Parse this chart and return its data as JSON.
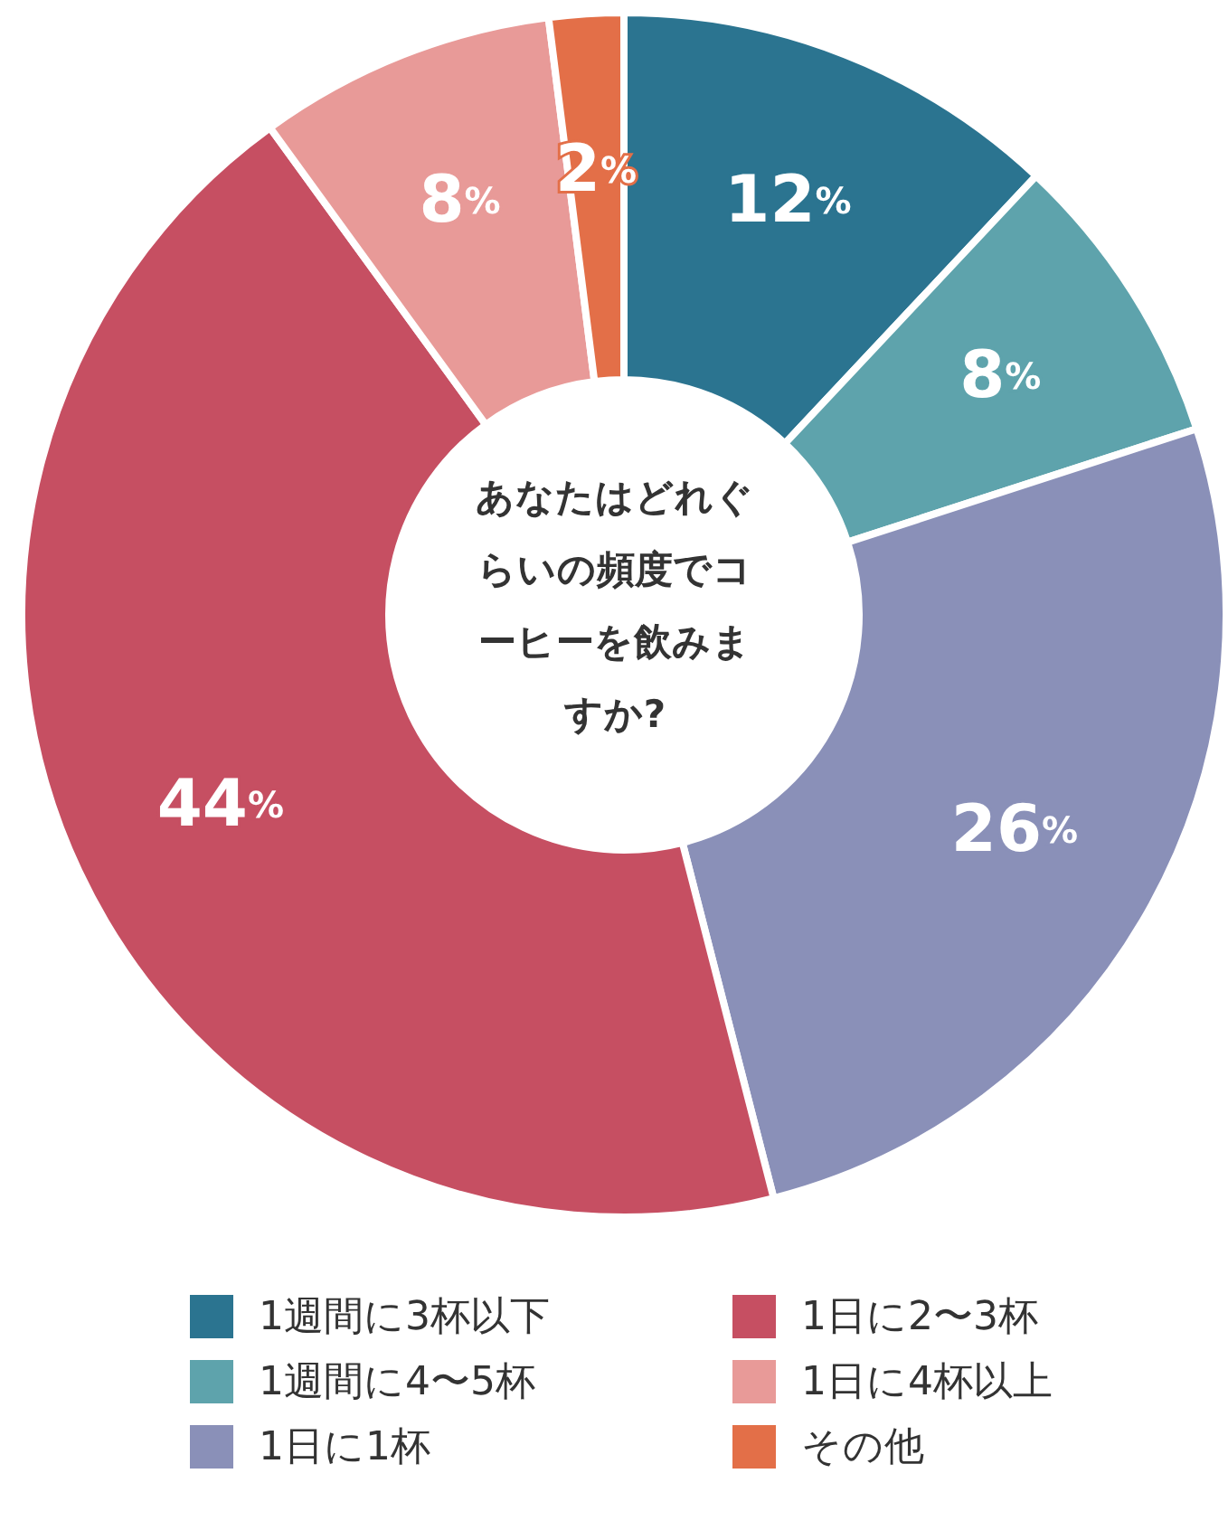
{
  "chart_data": {
    "type": "donut",
    "title": "あなたはどれぐらいの頻度でコーヒーを飲みますか?",
    "categories": [
      "1週間に3杯以下",
      "1週間に4〜5杯",
      "1日に1杯",
      "1日に2〜3杯",
      "1日に4杯以上",
      "その他"
    ],
    "values": [
      12,
      8,
      26,
      44,
      8,
      2
    ],
    "colors": [
      "#2b7490",
      "#5ea3ac",
      "#8a90b8",
      "#c64f62",
      "#e89a98",
      "#e36f48"
    ],
    "value_labels": [
      "12%",
      "8%",
      "26%",
      "44%",
      "8%",
      "2%"
    ],
    "legend": "bottom"
  }
}
